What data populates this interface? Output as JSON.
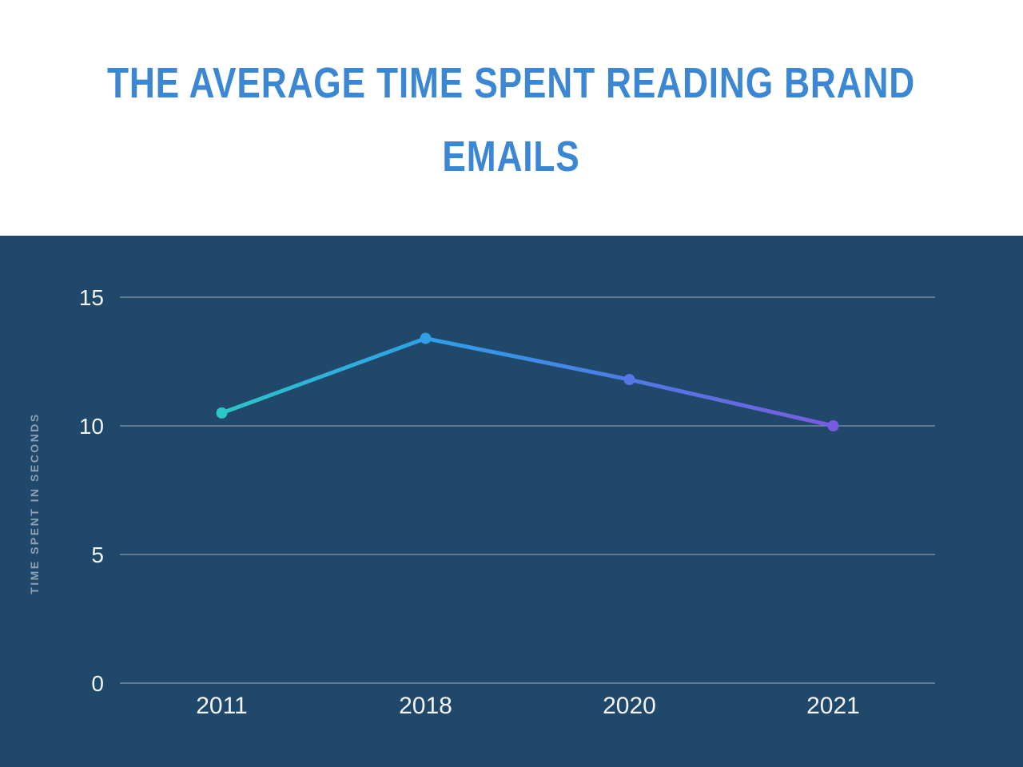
{
  "header": {
    "title_lines": [
      "THE AVERAGE TIME SPENT READING BRAND",
      "EMAILS"
    ]
  },
  "chart_data": {
    "type": "line",
    "title": "THE AVERAGE TIME SPENT READING BRAND EMAILS",
    "categories": [
      "2011",
      "2018",
      "2020",
      "2021"
    ],
    "values": [
      10.5,
      13.4,
      11.8,
      10
    ],
    "xlabel": "",
    "ylabel": "TIME SPENT IN SECONDS",
    "yticks": [
      0,
      5,
      10,
      15
    ],
    "ylim": [
      0,
      16.5
    ],
    "grid": true,
    "legend": "none",
    "colors": {
      "background": "#20486a",
      "title": "#3b87d3",
      "gridline": "rgba(255,255,255,0.45)",
      "tick_label": "#f2f6fa",
      "axis_title": "#8aa0b4",
      "line_gradient": [
        {
          "offset": 0,
          "color": "#2cc5c8"
        },
        {
          "offset": 0.34,
          "color": "#2f9fe8"
        },
        {
          "offset": 0.67,
          "color": "#4e7be6"
        },
        {
          "offset": 1,
          "color": "#7a5bdf"
        }
      ],
      "point_colors": [
        "#2cc5c8",
        "#2f9fe8",
        "#5577e6",
        "#7a5bdf"
      ]
    }
  }
}
